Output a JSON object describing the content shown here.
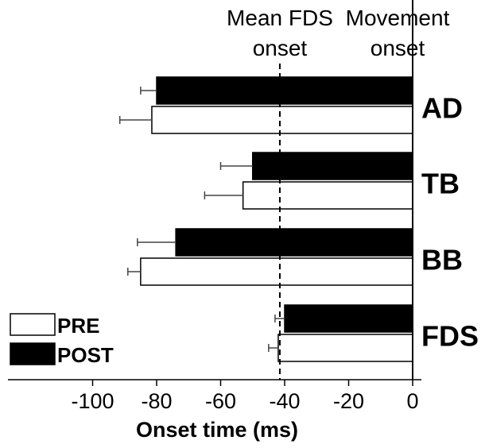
{
  "chart_data": {
    "type": "bar",
    "orientation": "horizontal",
    "categories": [
      "AD",
      "TB",
      "BB",
      "FDS"
    ],
    "series": [
      {
        "name": "POST",
        "values": [
          -80,
          -50,
          -74,
          -40
        ],
        "errors": [
          5,
          10,
          12,
          3
        ],
        "color": "#000000"
      },
      {
        "name": "PRE",
        "values": [
          -81.5,
          -53,
          -85,
          -42
        ],
        "errors": [
          10,
          12,
          4,
          3
        ],
        "color": "#ffffff"
      }
    ],
    "xlabel": "Onset time (ms)",
    "xlim": [
      -110,
      0
    ],
    "xticks": [
      -100,
      -80,
      -60,
      -40,
      -20,
      0
    ],
    "annotations": [
      {
        "text_lines": [
          "Mean FDS",
          "onset"
        ],
        "x": -41.5,
        "style": "dashed"
      },
      {
        "text_lines": [
          "Movement",
          "onset"
        ],
        "x": 0,
        "style": "solid"
      }
    ],
    "legend": {
      "position": "bottom-left",
      "entries": [
        "PRE",
        "POST"
      ]
    },
    "grid": false
  }
}
